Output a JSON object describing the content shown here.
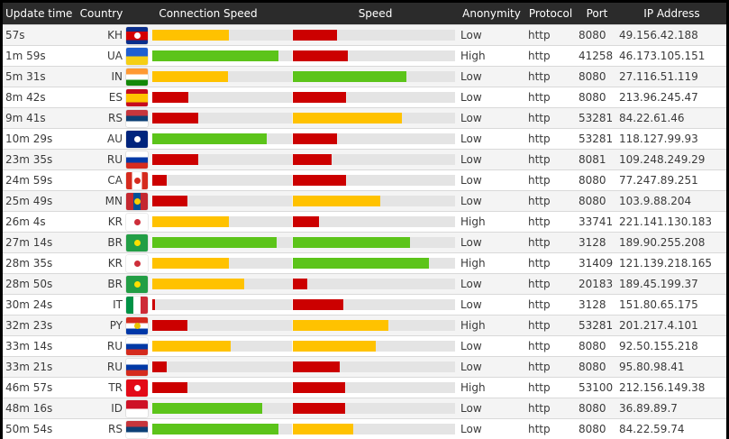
{
  "colors": {
    "low": "#cc0000",
    "medium": "#ffc200",
    "high": "#5cc41a",
    "header": "#2b2b2b"
  },
  "columns": {
    "update_time": "Update time",
    "country": "Country",
    "connection_speed": "Connection Speed",
    "speed": "Speed",
    "anonymity": "Anonymity",
    "protocol": "Protocol",
    "port": "Port",
    "ip": "IP Address"
  },
  "rows": [
    {
      "time": "57s",
      "country": "KH",
      "conn": 0.55,
      "conn_level": "medium",
      "speed": 0.27,
      "speed_level": "low",
      "anonymity": "Low",
      "protocol": "http",
      "port": "8080",
      "ip": "49.156.42.188",
      "flag": "kh-flag-icon"
    },
    {
      "time": "1m 59s",
      "country": "UA",
      "conn": 0.9,
      "conn_level": "high",
      "speed": 0.34,
      "speed_level": "low",
      "anonymity": "High",
      "protocol": "http",
      "port": "41258",
      "ip": "46.173.105.151",
      "flag": "ua-flag-icon"
    },
    {
      "time": "5m 31s",
      "country": "IN",
      "conn": 0.54,
      "conn_level": "medium",
      "speed": 0.7,
      "speed_level": "high",
      "anonymity": "Low",
      "protocol": "http",
      "port": "8080",
      "ip": "27.116.51.119",
      "flag": "in-flag-icon"
    },
    {
      "time": "8m 42s",
      "country": "ES",
      "conn": 0.26,
      "conn_level": "low",
      "speed": 0.33,
      "speed_level": "low",
      "anonymity": "Low",
      "protocol": "http",
      "port": "8080",
      "ip": "213.96.245.47",
      "flag": "es-flag-icon"
    },
    {
      "time": "9m 41s",
      "country": "RS",
      "conn": 0.33,
      "conn_level": "low",
      "speed": 0.67,
      "speed_level": "medium",
      "anonymity": "Low",
      "protocol": "http",
      "port": "53281",
      "ip": "84.22.61.46",
      "flag": "rs-flag-icon"
    },
    {
      "time": "10m 29s",
      "country": "AU",
      "conn": 0.82,
      "conn_level": "high",
      "speed": 0.27,
      "speed_level": "low",
      "anonymity": "Low",
      "protocol": "http",
      "port": "53281",
      "ip": "118.127.99.93",
      "flag": "au-flag-icon"
    },
    {
      "time": "23m 35s",
      "country": "RU",
      "conn": 0.33,
      "conn_level": "low",
      "speed": 0.24,
      "speed_level": "low",
      "anonymity": "Low",
      "protocol": "http",
      "port": "8081",
      "ip": "109.248.249.29",
      "flag": "ru-flag-icon"
    },
    {
      "time": "24m 59s",
      "country": "CA",
      "conn": 0.1,
      "conn_level": "low",
      "speed": 0.33,
      "speed_level": "low",
      "anonymity": "Low",
      "protocol": "http",
      "port": "8080",
      "ip": "77.247.89.251",
      "flag": "ca-flag-icon"
    },
    {
      "time": "25m 49s",
      "country": "MN",
      "conn": 0.25,
      "conn_level": "low",
      "speed": 0.54,
      "speed_level": "medium",
      "anonymity": "Low",
      "protocol": "http",
      "port": "8080",
      "ip": "103.9.88.204",
      "flag": "mn-flag-icon"
    },
    {
      "time": "26m 4s",
      "country": "KR",
      "conn": 0.55,
      "conn_level": "medium",
      "speed": 0.16,
      "speed_level": "low",
      "anonymity": "High",
      "protocol": "http",
      "port": "33741",
      "ip": "221.141.130.183",
      "flag": "kr-flag-icon"
    },
    {
      "time": "27m 14s",
      "country": "BR",
      "conn": 0.89,
      "conn_level": "high",
      "speed": 0.72,
      "speed_level": "high",
      "anonymity": "Low",
      "protocol": "http",
      "port": "3128",
      "ip": "189.90.255.208",
      "flag": "br-flag-icon"
    },
    {
      "time": "28m 35s",
      "country": "KR",
      "conn": 0.55,
      "conn_level": "medium",
      "speed": 0.84,
      "speed_level": "high",
      "anonymity": "High",
      "protocol": "http",
      "port": "31409",
      "ip": "121.139.218.165",
      "flag": "kr-flag-icon"
    },
    {
      "time": "28m 50s",
      "country": "BR",
      "conn": 0.66,
      "conn_level": "medium",
      "speed": 0.09,
      "speed_level": "low",
      "anonymity": "Low",
      "protocol": "http",
      "port": "20183",
      "ip": "189.45.199.37",
      "flag": "br-flag-icon"
    },
    {
      "time": "30m 24s",
      "country": "IT",
      "conn": 0.02,
      "conn_level": "low",
      "speed": 0.31,
      "speed_level": "low",
      "anonymity": "Low",
      "protocol": "http",
      "port": "3128",
      "ip": "151.80.65.175",
      "flag": "it-flag-icon"
    },
    {
      "time": "32m 23s",
      "country": "PY",
      "conn": 0.25,
      "conn_level": "low",
      "speed": 0.59,
      "speed_level": "medium",
      "anonymity": "High",
      "protocol": "http",
      "port": "53281",
      "ip": "201.217.4.101",
      "flag": "py-flag-icon"
    },
    {
      "time": "33m 14s",
      "country": "RU",
      "conn": 0.56,
      "conn_level": "medium",
      "speed": 0.51,
      "speed_level": "medium",
      "anonymity": "Low",
      "protocol": "http",
      "port": "8080",
      "ip": "92.50.155.218",
      "flag": "ru-flag-icon"
    },
    {
      "time": "33m 21s",
      "country": "RU",
      "conn": 0.1,
      "conn_level": "low",
      "speed": 0.29,
      "speed_level": "low",
      "anonymity": "Low",
      "protocol": "http",
      "port": "8080",
      "ip": "95.80.98.41",
      "flag": "ru-flag-icon"
    },
    {
      "time": "46m 57s",
      "country": "TR",
      "conn": 0.25,
      "conn_level": "low",
      "speed": 0.32,
      "speed_level": "low",
      "anonymity": "High",
      "protocol": "http",
      "port": "53100",
      "ip": "212.156.149.38",
      "flag": "tr-flag-icon"
    },
    {
      "time": "48m 16s",
      "country": "ID",
      "conn": 0.79,
      "conn_level": "high",
      "speed": 0.32,
      "speed_level": "low",
      "anonymity": "Low",
      "protocol": "http",
      "port": "8080",
      "ip": "36.89.89.7",
      "flag": "id-flag-icon"
    },
    {
      "time": "50m 54s",
      "country": "RS",
      "conn": 0.9,
      "conn_level": "high",
      "speed": 0.37,
      "speed_level": "medium",
      "anonymity": "Low",
      "protocol": "http",
      "port": "8080",
      "ip": "84.22.59.74",
      "flag": "rs-flag-icon"
    }
  ]
}
